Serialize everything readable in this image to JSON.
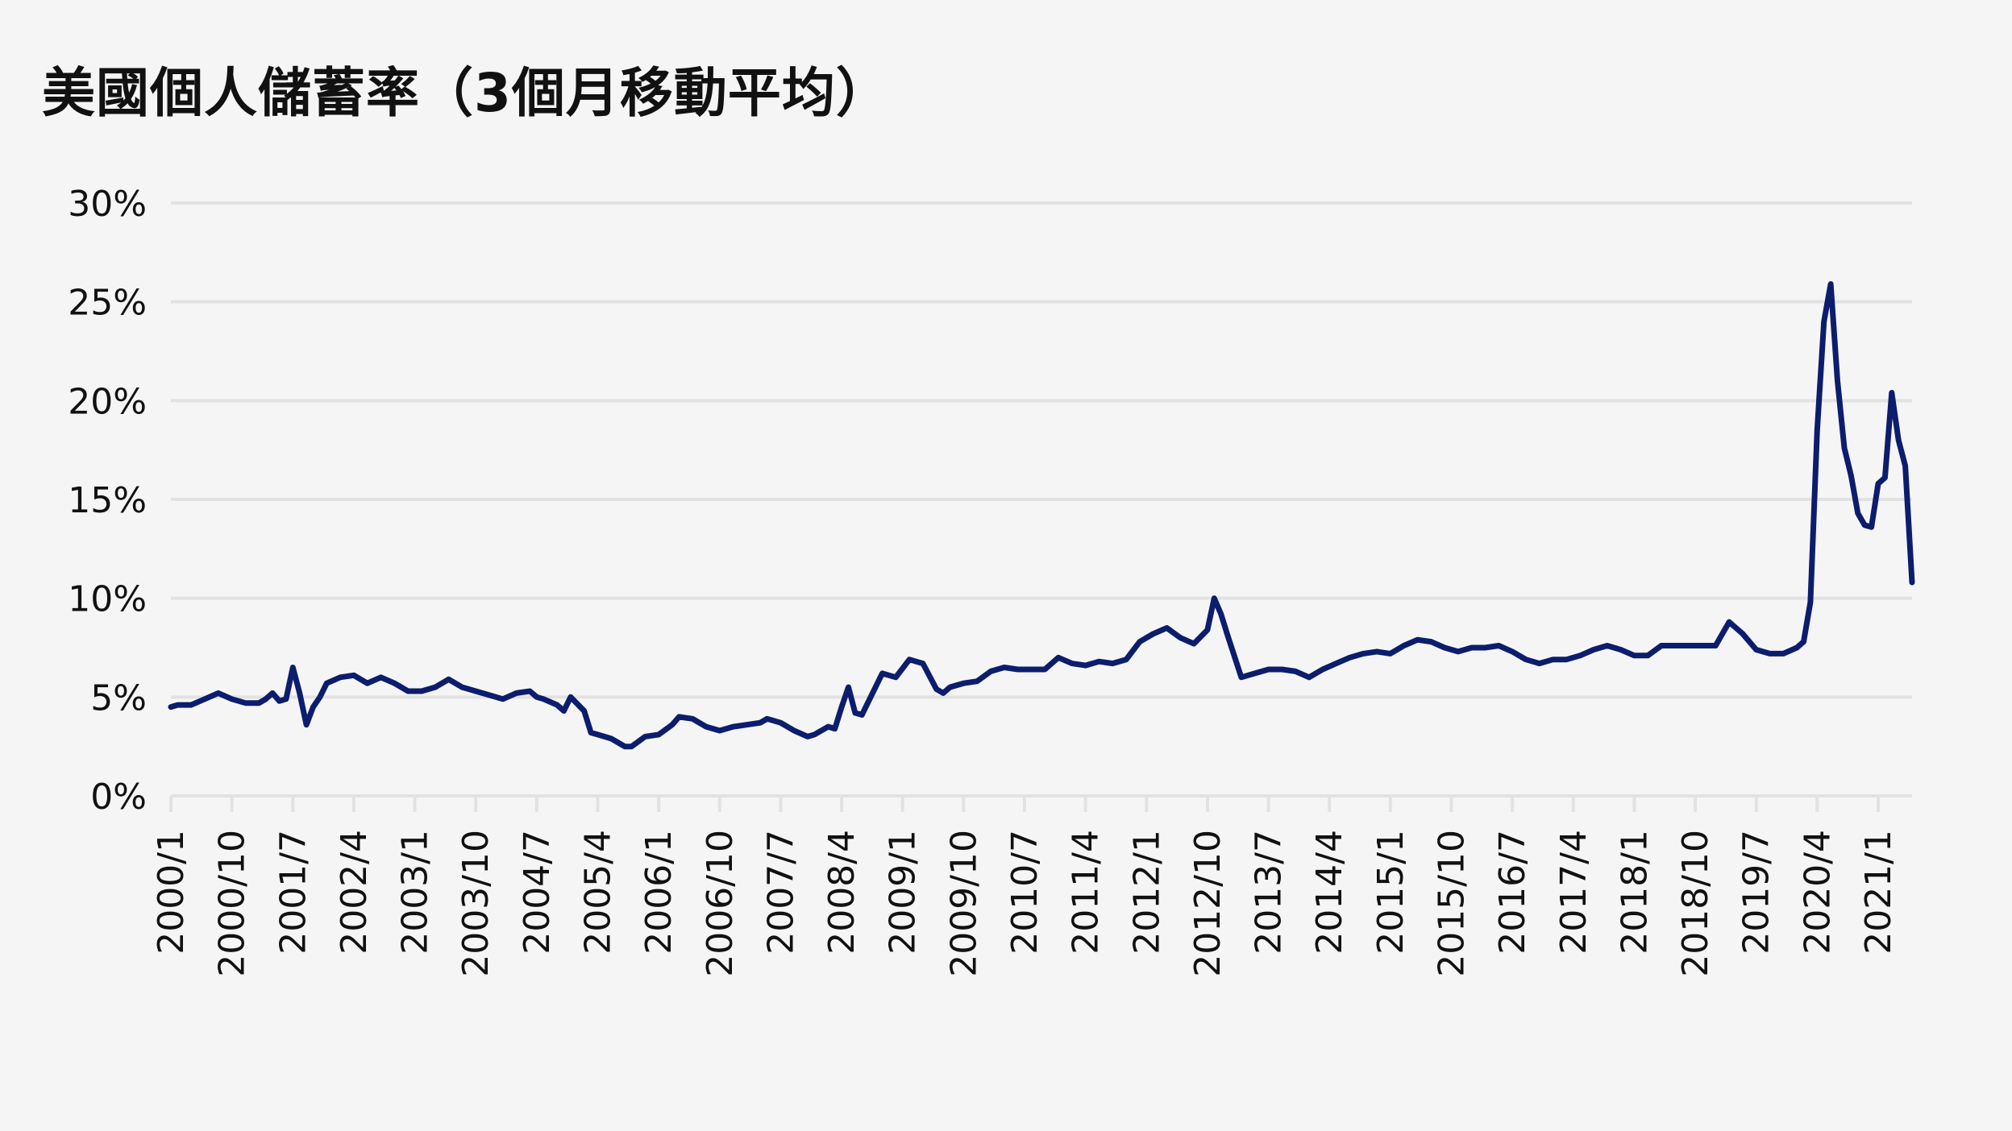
{
  "colors": {
    "background": "#f5f5f5",
    "line": "#0c1d6e",
    "grid": "#e2e2e2",
    "text": "#111111"
  },
  "chart_data": {
    "type": "line",
    "title": "美國個人儲蓄率（3個月移動平均）",
    "xlabel": "",
    "ylabel": "",
    "ylim": [
      0,
      30
    ],
    "grid": true,
    "legend": "none",
    "x_range": [
      "2000/1",
      "2021/6"
    ],
    "x_tick_labels": [
      "2000/1",
      "2000/10",
      "2001/7",
      "2002/4",
      "2003/1",
      "2003/10",
      "2004/7",
      "2005/4",
      "2006/1",
      "2006/10",
      "2007/7",
      "2008/4",
      "2009/1",
      "2009/10",
      "2010/7",
      "2011/4",
      "2012/1",
      "2012/10",
      "2013/7",
      "2014/4",
      "2015/1",
      "2015/10",
      "2016/7",
      "2017/4",
      "2018/1",
      "2018/10",
      "2019/7",
      "2020/4",
      "2021/1"
    ],
    "y_tick_labels": [
      "0%",
      "5%",
      "10%",
      "15%",
      "20%",
      "25%",
      "30%"
    ],
    "y_ticks": [
      0,
      5,
      10,
      15,
      20,
      25,
      30
    ],
    "series": [
      {
        "x": [
          "2000/1",
          "2000/2",
          "2000/4",
          "2000/6",
          "2000/8",
          "2000/10",
          "2000/12",
          "2001/2",
          "2001/3",
          "2001/4",
          "2001/5",
          "2001/6",
          "2001/7",
          "2001/8",
          "2001/9",
          "2001/10",
          "2001/11",
          "2001/12",
          "2002/2",
          "2002/4",
          "2002/6",
          "2002/8",
          "2002/10",
          "2002/12",
          "2003/2",
          "2003/4",
          "2003/6",
          "2003/8",
          "2003/10",
          "2003/12",
          "2004/2",
          "2004/4",
          "2004/6",
          "2004/7",
          "2004/8",
          "2004/10",
          "2004/11",
          "2004/12",
          "2005/2",
          "2005/3",
          "2005/4",
          "2005/6",
          "2005/8",
          "2005/9",
          "2005/11",
          "2006/1",
          "2006/3",
          "2006/4",
          "2006/6",
          "2006/8",
          "2006/10",
          "2006/12",
          "2007/2",
          "2007/4",
          "2007/5",
          "2007/7",
          "2007/9",
          "2007/11",
          "2007/12",
          "2008/2",
          "2008/3",
          "2008/4",
          "2008/5",
          "2008/6",
          "2008/7",
          "2008/8",
          "2008/10",
          "2008/12",
          "2009/2",
          "2009/4",
          "2009/6",
          "2009/7",
          "2009/8",
          "2009/9",
          "2009/10",
          "2009/12",
          "2010/2",
          "2010/4",
          "2010/6",
          "2010/8",
          "2010/10",
          "2010/12",
          "2011/2",
          "2011/4",
          "2011/6",
          "2011/8",
          "2011/10",
          "2011/12",
          "2012/2",
          "2012/4",
          "2012/6",
          "2012/8",
          "2012/10",
          "2012/11",
          "2012/12",
          "2013/1",
          "2013/3",
          "2013/5",
          "2013/7",
          "2013/9",
          "2013/11",
          "2014/1",
          "2014/3",
          "2014/5",
          "2014/7",
          "2014/9",
          "2014/11",
          "2015/1",
          "2015/3",
          "2015/5",
          "2015/7",
          "2015/9",
          "2015/11",
          "2016/1",
          "2016/3",
          "2016/5",
          "2016/7",
          "2016/9",
          "2016/11",
          "2017/1",
          "2017/3",
          "2017/5",
          "2017/7",
          "2017/9",
          "2017/11",
          "2018/1",
          "2018/3",
          "2018/5",
          "2018/7",
          "2018/9",
          "2018/11",
          "2019/1",
          "2019/3",
          "2019/5",
          "2019/7",
          "2019/9",
          "2019/11",
          "2020/1",
          "2020/2",
          "2020/3",
          "2020/4",
          "2020/5",
          "2020/6",
          "2020/7",
          "2020/8",
          "2020/9",
          "2020/10",
          "2020/11",
          "2020/12",
          "2021/1",
          "2021/2",
          "2021/3",
          "2021/4",
          "2021/5",
          "2021/6"
        ],
        "values": [
          4.5,
          4.6,
          4.6,
          4.9,
          5.2,
          4.9,
          4.7,
          4.7,
          4.9,
          5.2,
          4.8,
          4.9,
          6.5,
          5.2,
          3.6,
          4.5,
          5.0,
          5.7,
          6.0,
          6.1,
          5.7,
          6.0,
          5.7,
          5.3,
          5.3,
          5.5,
          5.9,
          5.5,
          5.3,
          5.1,
          4.9,
          5.2,
          5.3,
          5.0,
          4.9,
          4.6,
          4.3,
          5.0,
          4.3,
          3.2,
          3.1,
          2.9,
          2.5,
          2.5,
          3.0,
          3.1,
          3.6,
          4.0,
          3.9,
          3.5,
          3.3,
          3.5,
          3.6,
          3.7,
          3.9,
          3.7,
          3.3,
          3.0,
          3.1,
          3.5,
          3.4,
          4.5,
          5.5,
          4.2,
          4.1,
          4.8,
          6.2,
          6.0,
          6.9,
          6.7,
          5.4,
          5.2,
          5.5,
          5.6,
          5.7,
          5.8,
          6.3,
          6.5,
          6.4,
          6.4,
          6.4,
          7.0,
          6.7,
          6.6,
          6.8,
          6.7,
          6.9,
          7.8,
          8.2,
          8.5,
          8.0,
          7.7,
          8.4,
          10.0,
          9.2,
          8.1,
          6.0,
          6.2,
          6.4,
          6.4,
          6.3,
          6.0,
          6.4,
          6.7,
          7.0,
          7.2,
          7.3,
          7.2,
          7.6,
          7.9,
          7.8,
          7.5,
          7.3,
          7.5,
          7.5,
          7.6,
          7.3,
          6.9,
          6.7,
          6.9,
          6.9,
          7.1,
          7.4,
          7.6,
          7.4,
          7.1,
          7.1,
          7.6,
          7.6,
          7.6,
          7.6,
          7.6,
          8.8,
          8.2,
          7.4,
          7.2,
          7.2,
          7.5,
          7.8,
          9.8,
          18.5,
          24.0,
          25.9,
          21.0,
          17.6,
          16.2,
          14.3,
          13.7,
          13.6,
          15.8,
          16.1,
          20.4,
          18.0,
          16.7,
          10.8
        ]
      }
    ]
  }
}
